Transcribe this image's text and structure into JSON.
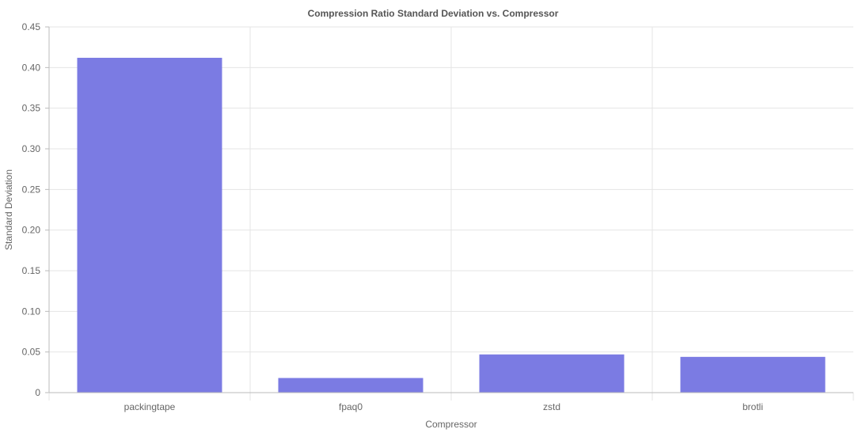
{
  "chart_data": {
    "type": "bar",
    "title": "Compression Ratio Standard Deviation vs. Compressor",
    "xlabel": "Compressor",
    "ylabel": "Standard Deviation",
    "categories": [
      "packingtape",
      "fpaq0",
      "zstd",
      "brotli"
    ],
    "values": [
      0.412,
      0.018,
      0.047,
      0.044
    ],
    "ylim": [
      0,
      0.45
    ],
    "y_ticks": [
      "0",
      "0.05",
      "0.10",
      "0.15",
      "0.20",
      "0.25",
      "0.30",
      "0.35",
      "0.40",
      "0.45"
    ],
    "grid": true,
    "bar_color": "#7b7be3"
  }
}
